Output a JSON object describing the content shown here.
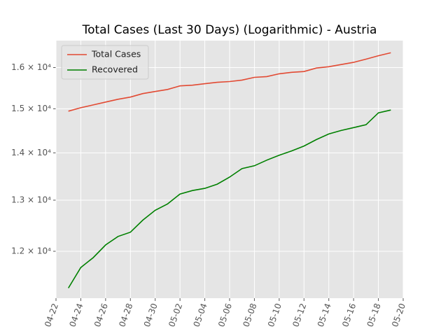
{
  "chart_data": {
    "type": "line",
    "title": "Total Cases (Last 30 Days) (Logarithmic) - Austria",
    "x": [
      "04-23",
      "04-24",
      "04-25",
      "04-26",
      "04-27",
      "04-28",
      "04-29",
      "04-30",
      "05-01",
      "05-02",
      "05-03",
      "05-04",
      "05-05",
      "05-06",
      "05-07",
      "05-08",
      "05-09",
      "05-10",
      "05-11",
      "05-12",
      "05-13",
      "05-14",
      "05-15",
      "05-16",
      "05-17",
      "05-18",
      "05-19"
    ],
    "series": [
      {
        "name": "Total Cases",
        "color": "#e24a33",
        "values": [
          14944,
          15024,
          15091,
          15158,
          15226,
          15277,
          15361,
          15412,
          15460,
          15547,
          15565,
          15600,
          15635,
          15653,
          15689,
          15757,
          15775,
          15845,
          15881,
          15900,
          15988,
          16022,
          16076,
          16130,
          16212,
          16300,
          16375
        ]
      },
      {
        "name": "Recovered",
        "color": "#008000",
        "values": [
          11329,
          11699,
          11881,
          12120,
          12282,
          12364,
          12599,
          12796,
          12924,
          13125,
          13198,
          13242,
          13330,
          13478,
          13658,
          13719,
          13841,
          13949,
          14042,
          14151,
          14293,
          14419,
          14499,
          14564,
          14629,
          14905,
          14971
        ]
      }
    ],
    "xlim": [
      "04-22",
      "05-20"
    ],
    "xticks": [
      "04-22",
      "04-24",
      "04-26",
      "04-28",
      "04-30",
      "05-02",
      "05-04",
      "05-06",
      "05-08",
      "05-10",
      "05-12",
      "05-14",
      "05-16",
      "05-18",
      "05-20"
    ],
    "ylim": [
      11150,
      16690
    ],
    "log_y": true,
    "yticks": [
      {
        "value": 12000,
        "label": "1.2 × 10⁴"
      },
      {
        "value": 13000,
        "label": "1.3 × 10⁴"
      },
      {
        "value": 14000,
        "label": "1.4 × 10⁴"
      },
      {
        "value": 15000,
        "label": "1.5 × 10⁴"
      },
      {
        "value": 16000,
        "label": "1.6 × 10⁴"
      }
    ],
    "grid": true,
    "legend": "upper-left"
  }
}
